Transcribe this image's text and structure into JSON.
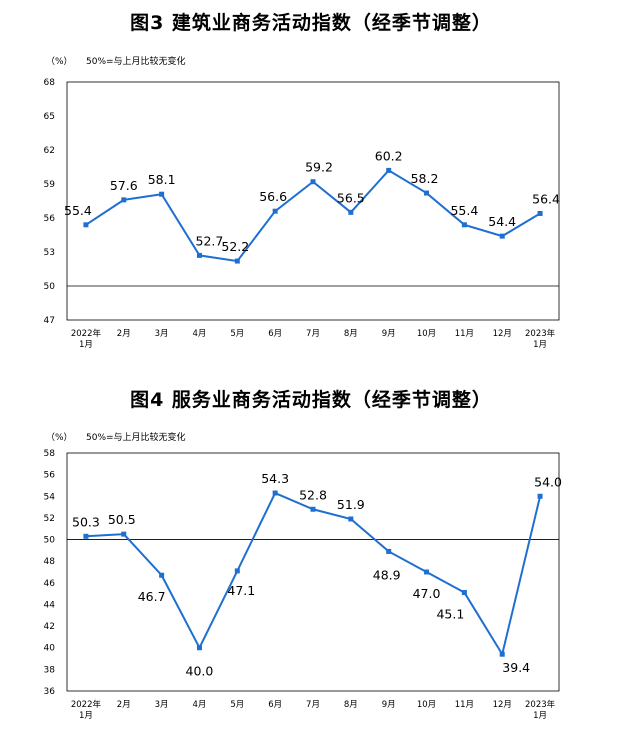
{
  "chart_data": [
    {
      "type": "line",
      "title": "图3  建筑业商务活动指数（经季节调整）",
      "unit": "（%）",
      "reference_note": "50%=与上月比较无变化",
      "categories": [
        [
          "2022年",
          "1月"
        ],
        [
          "2月"
        ],
        [
          "3月"
        ],
        [
          "4月"
        ],
        [
          "5月"
        ],
        [
          "6月"
        ],
        [
          "7月"
        ],
        [
          "8月"
        ],
        [
          "9月"
        ],
        [
          "10月"
        ],
        [
          "11月"
        ],
        [
          "12月"
        ],
        [
          "2023年",
          "1月"
        ]
      ],
      "values": [
        55.4,
        57.6,
        58.1,
        52.7,
        52.2,
        56.6,
        59.2,
        56.5,
        60.2,
        58.2,
        55.4,
        54.4,
        56.4
      ],
      "value_labels": [
        "55.4",
        "57.6",
        "58.1",
        "52.7",
        "52.2",
        "56.6",
        "59.2",
        "56.5",
        "60.2",
        "58.2",
        "55.4",
        "54.4",
        "56.4"
      ],
      "ylim": [
        47,
        68
      ],
      "yticks": [
        "47",
        "50",
        "53",
        "56",
        "59",
        "62",
        "65",
        "68"
      ],
      "reference_line": 50,
      "color": "#1f6fd1"
    },
    {
      "type": "line",
      "title": "图4  服务业商务活动指数（经季节调整）",
      "unit": "（%）",
      "reference_note": "50%=与上月比较无变化",
      "categories": [
        [
          "2022年",
          "1月"
        ],
        [
          "2月"
        ],
        [
          "3月"
        ],
        [
          "4月"
        ],
        [
          "5月"
        ],
        [
          "6月"
        ],
        [
          "7月"
        ],
        [
          "8月"
        ],
        [
          "9月"
        ],
        [
          "10月"
        ],
        [
          "11月"
        ],
        [
          "12月"
        ],
        [
          "2023年",
          "1月"
        ]
      ],
      "values": [
        50.3,
        50.5,
        46.7,
        40.0,
        47.1,
        54.3,
        52.8,
        51.9,
        48.9,
        47.0,
        45.1,
        39.4,
        54.0
      ],
      "value_labels": [
        "50.3",
        "50.5",
        "46.7",
        "40.0",
        "47.1",
        "54.3",
        "52.8",
        "51.9",
        "48.9",
        "47.0",
        "45.1",
        "39.4",
        "54.0"
      ],
      "ylim": [
        36,
        58
      ],
      "yticks": [
        "36",
        "38",
        "40",
        "42",
        "44",
        "46",
        "48",
        "50",
        "52",
        "54",
        "56",
        "58"
      ],
      "reference_line": 50,
      "color": "#1f6fd1"
    }
  ]
}
